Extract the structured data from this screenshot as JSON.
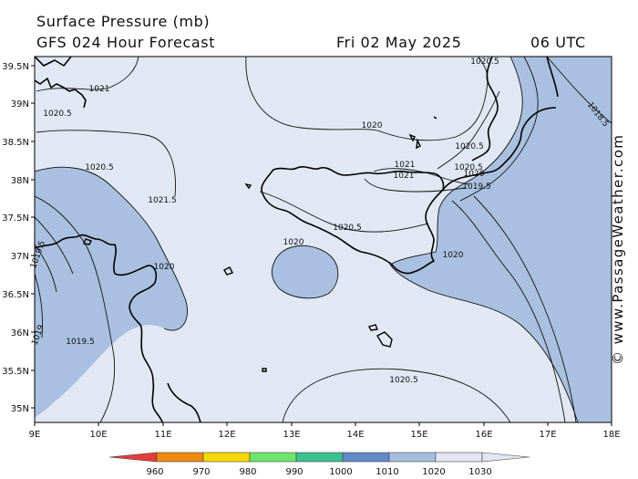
{
  "header": {
    "line1": "Surface Pressure (mb)",
    "line2": "GFS 024 Hour Forecast",
    "date": "Fri 02 May 2025",
    "time": "06 UTC"
  },
  "lat_labels": [
    "39.5N",
    "39N",
    "38.5N",
    "38N",
    "37.5N",
    "37N",
    "36.5N",
    "36N",
    "35.5N",
    "35N"
  ],
  "lon_labels": [
    "9E",
    "10E",
    "11E",
    "12E",
    "13E",
    "14E",
    "15E",
    "16E",
    "17E",
    "18E"
  ],
  "isobar_labels": [
    "1020.5",
    "1021",
    "1020.5",
    "1020",
    "1020.5",
    "1020.5",
    "1021",
    "1021",
    "1021.5",
    "1020.5",
    "1020",
    "1019.5",
    "1019.5",
    "1020.5",
    "1020",
    "1020",
    "1020",
    "1018.5",
    "1019",
    "1019.5",
    "1020.5"
  ],
  "legend": {
    "ticks": [
      "960",
      "970",
      "980",
      "990",
      "1000",
      "1010",
      "1020",
      "1030"
    ],
    "colors": [
      "#e83b3b",
      "#f08a10",
      "#f5d800",
      "#6ee66e",
      "#3cc08f",
      "#6488c8",
      "#a6bfe0",
      "#e1e8f4"
    ]
  },
  "watermark": "© www.PassageWeather.com",
  "colors": {
    "low": "#a9c0e0",
    "high": "#e1e8f4"
  }
}
